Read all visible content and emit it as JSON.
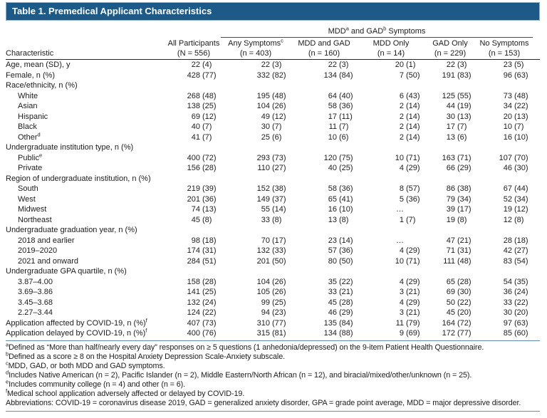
{
  "title": "Table 1. Premedical Applicant Characteristics",
  "colors": {
    "header_bar": "#1d5a87",
    "rule_blue": "#5d8fb5"
  },
  "table": {
    "stub_header": "Characteristic",
    "span_header_parts": [
      "MDD",
      "a",
      " and GAD",
      "b",
      " Symptoms"
    ],
    "columns": [
      {
        "line1": "All Participants",
        "sup": "",
        "line2": "(N = 556)"
      },
      {
        "line1": "Any Symptoms",
        "sup": "c",
        "line2": "(n = 403)"
      },
      {
        "line1": "MDD and GAD",
        "sup": "",
        "line2": "(n = 160)"
      },
      {
        "line1": "MDD Only",
        "sup": "",
        "line2": "(n = 14)"
      },
      {
        "line1": "GAD Only",
        "sup": "",
        "line2": "(n = 229)"
      },
      {
        "line1": "No Symptoms",
        "sup": "",
        "line2": "(n = 153)"
      }
    ],
    "rows": [
      {
        "label": "Age, mean (SD), y",
        "sup": "",
        "indent": 0,
        "values": [
          "22 (4)",
          "22 (3)",
          "22 (3)",
          "20 (1)",
          "22 (3)",
          "23 (5)"
        ]
      },
      {
        "label": "Female, n (%)",
        "sup": "",
        "indent": 0,
        "values": [
          "428 (77)",
          "332 (82)",
          "134 (84)",
          "7 (50)",
          "191 (83)",
          "96 (63)"
        ]
      },
      {
        "label": "Race/ethnicity, n (%)",
        "sup": "",
        "indent": 0,
        "values": null
      },
      {
        "label": "White",
        "sup": "",
        "indent": 1,
        "values": [
          "268 (48)",
          "195 (48)",
          "64 (40)",
          "6 (43)",
          "125 (55)",
          "73 (48)"
        ]
      },
      {
        "label": "Asian",
        "sup": "",
        "indent": 1,
        "values": [
          "138 (25)",
          "104 (26)",
          "58 (36)",
          "2 (14)",
          "44 (19)",
          "34 (22)"
        ]
      },
      {
        "label": "Hispanic",
        "sup": "",
        "indent": 1,
        "values": [
          "69 (12)",
          "49 (12)",
          "17 (11)",
          "2 (14)",
          "30 (13)",
          "20 (13)"
        ]
      },
      {
        "label": "Black",
        "sup": "",
        "indent": 1,
        "values": [
          "40 (7)",
          "30 (7)",
          "11 (7)",
          "2 (14)",
          "17 (7)",
          "10 (7)"
        ]
      },
      {
        "label": "Other",
        "sup": "d",
        "indent": 1,
        "values": [
          "41 (7)",
          "25 (6)",
          "10 (6)",
          "2 (14)",
          "13 (6)",
          "16 (10)"
        ]
      },
      {
        "label": "Undergraduate institution type, n (%)",
        "sup": "",
        "indent": 0,
        "values": null
      },
      {
        "label": "Public",
        "sup": "e",
        "indent": 1,
        "values": [
          "400 (72)",
          "293 (73)",
          "120 (75)",
          "10 (71)",
          "163 (71)",
          "107 (70)"
        ]
      },
      {
        "label": "Private",
        "sup": "",
        "indent": 1,
        "values": [
          "156 (28)",
          "110 (27)",
          "40 (25)",
          "4 (29)",
          "66 (29)",
          "46 (30)"
        ]
      },
      {
        "label": "Region of undergraduate institution, n (%)",
        "sup": "",
        "indent": 0,
        "values": null
      },
      {
        "label": "South",
        "sup": "",
        "indent": 1,
        "values": [
          "219 (39)",
          "152 (38)",
          "58 (36)",
          "8 (57)",
          "86 (38)",
          "67 (44)"
        ]
      },
      {
        "label": "West",
        "sup": "",
        "indent": 1,
        "values": [
          "201 (36)",
          "149 (37)",
          "65 (41)",
          "5 (36)",
          "79 (34)",
          "52 (34)"
        ]
      },
      {
        "label": "Midwest",
        "sup": "",
        "indent": 1,
        "values": [
          "74 (13)",
          "55 (14)",
          "16 (10)",
          "…",
          "39 (17)",
          "19 (12)"
        ]
      },
      {
        "label": "Northeast",
        "sup": "",
        "indent": 1,
        "values": [
          "45 (8)",
          "33 (8)",
          "13 (8)",
          "1 (7)",
          "19 (8)",
          "12 (8)"
        ]
      },
      {
        "label": "Undergraduate graduation year, n (%)",
        "sup": "",
        "indent": 0,
        "values": null
      },
      {
        "label": "2018 and earlier",
        "sup": "",
        "indent": 1,
        "values": [
          "98 (18)",
          "70 (17)",
          "23 (14)",
          "…",
          "47 (21)",
          "28 (18)"
        ]
      },
      {
        "label": "2019–2020",
        "sup": "",
        "indent": 1,
        "values": [
          "174 (31)",
          "132 (33)",
          "57 (36)",
          "4 (29)",
          "71 (31)",
          "42 (27)"
        ]
      },
      {
        "label": "2021 and onward",
        "sup": "",
        "indent": 1,
        "values": [
          "284 (51)",
          "201 (50)",
          "80 (50)",
          "10 (71)",
          "111 (48)",
          "83 (54)"
        ]
      },
      {
        "label": "Undergraduate GPA quartile, n (%)",
        "sup": "",
        "indent": 0,
        "values": null
      },
      {
        "label": "3.87–4.00",
        "sup": "",
        "indent": 1,
        "values": [
          "158 (28)",
          "104 (26)",
          "35 (22)",
          "4 (29)",
          "65 (28)",
          "54 (35)"
        ]
      },
      {
        "label": "3.69–3.86",
        "sup": "",
        "indent": 1,
        "values": [
          "141 (25)",
          "105 (26)",
          "33 (21)",
          "3 (21)",
          "69 (30)",
          "36 (24)"
        ]
      },
      {
        "label": "3.45–3.68",
        "sup": "",
        "indent": 1,
        "values": [
          "132 (24)",
          "99 (25)",
          "45 (28)",
          "4 (29)",
          "50 (22)",
          "33 (22)"
        ]
      },
      {
        "label": "2.27–3.44",
        "sup": "",
        "indent": 1,
        "values": [
          "124 (22)",
          "94 (23)",
          "46 (29)",
          "3 (21)",
          "45 (20)",
          "30 (20)"
        ]
      },
      {
        "label": "Application affected by COVID-19, n (%)",
        "sup": "f",
        "indent": 0,
        "values": [
          "407 (73)",
          "310 (77)",
          "135 (84)",
          "11 (79)",
          "164 (72)",
          "97 (63)"
        ]
      },
      {
        "label": "Application delayed by COVID-19, n (%)",
        "sup": "f",
        "indent": 0,
        "values": [
          "400 (76)",
          "315 (81)",
          "134 (88)",
          "9 (69)",
          "172 (77)",
          "85 (60)"
        ]
      }
    ]
  },
  "footnotes": [
    {
      "marker": "a",
      "text": "Defined as “More than half/nearly every day” responses on ≥ 5 questions (1 anhedonia/depressed) on the 9-item Patient Health Questionnaire."
    },
    {
      "marker": "b",
      "text": "Defined as a score ≥ 8 on the Hospital Anxiety Depression Scale-Anxiety subscale."
    },
    {
      "marker": "c",
      "text": "MDD, GAD, or both MDD and GAD symptoms."
    },
    {
      "marker": "d",
      "text": "Includes Native American (n = 2), Pacific Islander (n = 2), Middle Eastern/North African (n = 12), and biracial/mixed/other/unknown (n = 25)."
    },
    {
      "marker": "e",
      "text": "Includes community college (n = 4) and other (n = 6)."
    },
    {
      "marker": "f",
      "text": "Medical school application adversely affected or delayed by COVID-19."
    },
    {
      "marker": "",
      "text": "Abbreviations: COVID-19 = coronavirus disease 2019, GAD = generalized anxiety disorder, GPA = grade point average, MDD = major depressive disorder."
    }
  ]
}
